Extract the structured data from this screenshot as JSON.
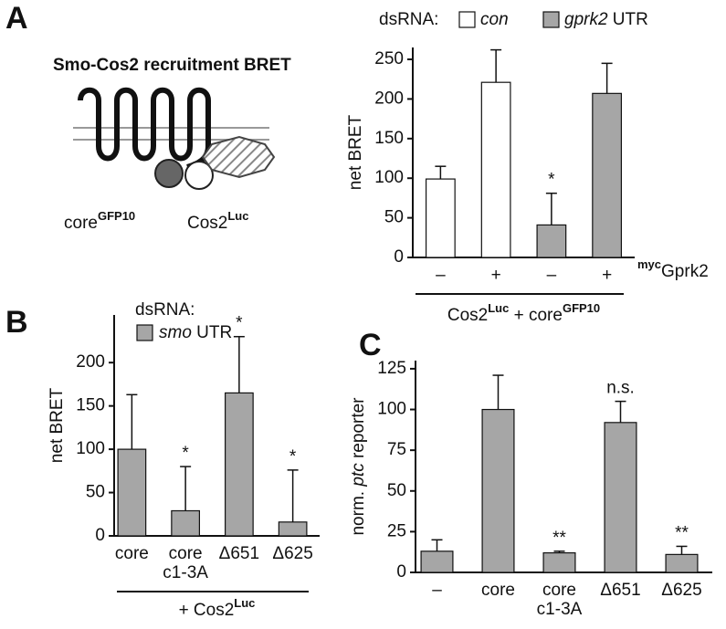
{
  "figure": {
    "panel_labels": [
      "A",
      "B",
      "C"
    ],
    "diagram": {
      "title": "Smo-Cos2 recruitment BRET",
      "labels": [
        [
          {
            "text": "core"
          },
          {
            "sup": "GFP10"
          }
        ],
        [
          {
            "text": "Cos2"
          },
          {
            "sup": "Luc"
          }
        ]
      ]
    }
  },
  "chart_data": [
    {
      "type": "bar",
      "ylabel": [
        {
          "text": "net BRET"
        }
      ],
      "categories": [
        "–",
        "+",
        "–",
        "+"
      ],
      "xlabel": [
        {
          "sup": "myc"
        },
        {
          "text": "Gprk2"
        }
      ],
      "group_label": [
        {
          "text": "Cos2"
        },
        {
          "sup": "Luc"
        },
        {
          "text": " + core"
        },
        {
          "sup": "GFP10"
        }
      ],
      "legend_title": "dsRNA:",
      "series": [
        {
          "name": [
            {
              "italic": "con"
            }
          ],
          "color": "#ffffff",
          "values": [
            99,
            221,
            null,
            null
          ],
          "errors": [
            16,
            41,
            null,
            null
          ]
        },
        {
          "name": [
            {
              "italic": "gprk2"
            },
            {
              "text": " UTR"
            }
          ],
          "color": "#a6a6a6",
          "values": [
            null,
            null,
            41,
            207
          ],
          "errors": [
            null,
            null,
            40,
            38
          ]
        }
      ],
      "annotations": [
        {
          "index": 2,
          "text": "*"
        }
      ],
      "ylim": [
        0,
        265
      ],
      "yticks": [
        0,
        50,
        100,
        150,
        200,
        250
      ]
    },
    {
      "type": "bar",
      "ylabel": [
        {
          "text": "net BRET"
        }
      ],
      "categories": [
        "core",
        "core\nc1-3A",
        "Δ651",
        "Δ625"
      ],
      "group_label": [
        {
          "text": "+ Cos2"
        },
        {
          "sup": "Luc"
        }
      ],
      "legend_title": "dsRNA:",
      "series": [
        {
          "name": [
            {
              "italic": "smo"
            },
            {
              "text": " UTR"
            }
          ],
          "color": "#a6a6a6",
          "values": [
            100,
            29,
            165,
            16
          ],
          "errors": [
            63,
            51,
            65,
            60
          ]
        }
      ],
      "annotations": [
        {
          "index": 1,
          "text": "*"
        },
        {
          "index": 2,
          "text": "*"
        },
        {
          "index": 3,
          "text": "*"
        }
      ],
      "ylim": [
        0,
        255
      ],
      "yticks": [
        0,
        50,
        100,
        150,
        200
      ]
    },
    {
      "type": "bar",
      "ylabel": [
        {
          "text": "norm. "
        },
        {
          "italic": "ptc"
        },
        {
          "text": " reporter"
        }
      ],
      "categories": [
        "–",
        "core",
        "core\nc1-3A",
        "Δ651",
        "Δ625"
      ],
      "series": [
        {
          "color": "#a6a6a6",
          "values": [
            13,
            100,
            12,
            92,
            11
          ],
          "errors": [
            7,
            21,
            1,
            13,
            5
          ]
        }
      ],
      "annotations": [
        {
          "index": 2,
          "text": "**"
        },
        {
          "index": 3,
          "text": "n.s."
        },
        {
          "index": 4,
          "text": "**"
        }
      ],
      "ylim": [
        0,
        130
      ],
      "yticks": [
        0,
        25,
        50,
        75,
        100,
        125
      ]
    }
  ]
}
